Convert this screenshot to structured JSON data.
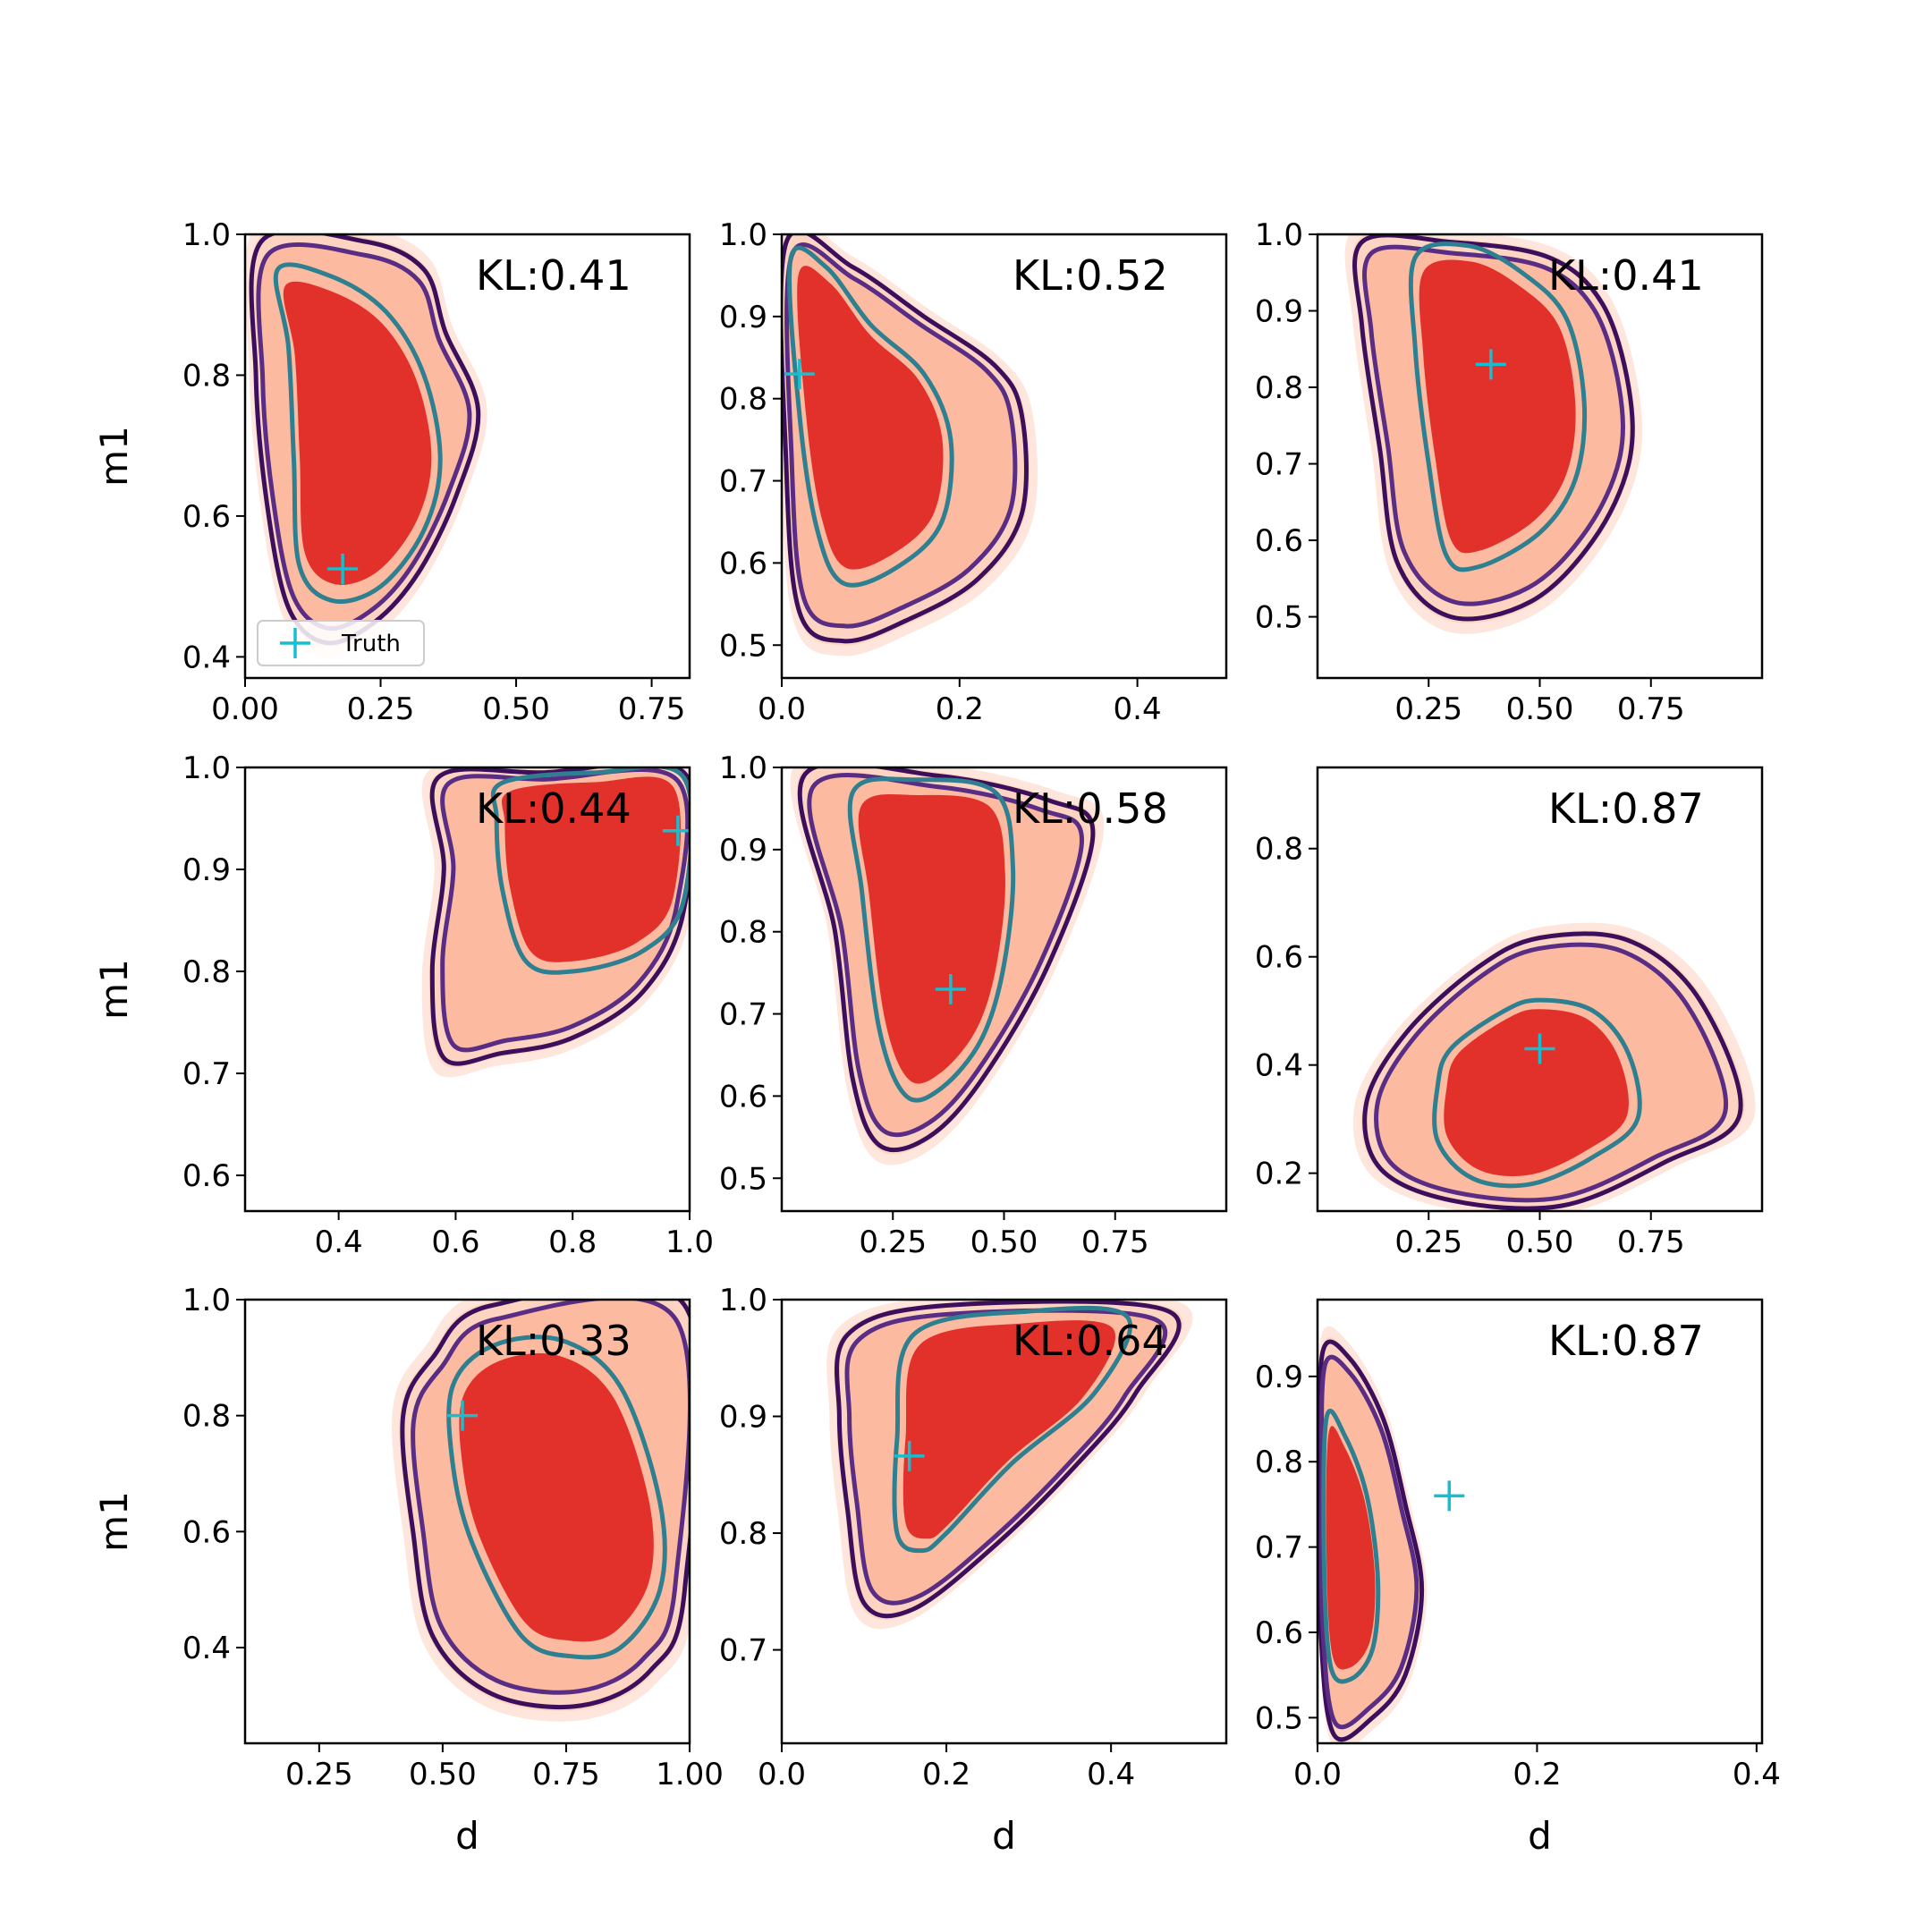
{
  "chart_data": [
    {
      "type": "contour",
      "kl_label": "KL:0.41",
      "xlabel": "",
      "ylabel": "m1",
      "xlim": [
        0.0,
        0.82
      ],
      "ylim": [
        0.37,
        1.0
      ],
      "xticks": [
        0.0,
        0.25,
        0.5,
        0.75
      ],
      "xtick_labels": [
        "0.00",
        "0.25",
        "0.50",
        "0.75"
      ],
      "yticks": [
        0.4,
        0.6,
        0.8,
        1.0
      ],
      "ytick_labels": [
        "0.4",
        "0.6",
        "0.8",
        "1.0"
      ],
      "truth": [
        0.18,
        0.525
      ],
      "legend": "Truth",
      "outer": [
        [
          0.03,
          0.99
        ],
        [
          0.22,
          0.99
        ],
        [
          0.33,
          0.95
        ],
        [
          0.37,
          0.86
        ],
        [
          0.43,
          0.75
        ],
        [
          0.39,
          0.63
        ],
        [
          0.32,
          0.52
        ],
        [
          0.24,
          0.45
        ],
        [
          0.15,
          0.42
        ],
        [
          0.08,
          0.47
        ],
        [
          0.04,
          0.62
        ],
        [
          0.02,
          0.8
        ]
      ],
      "inner": [
        [
          0.06,
          0.95
        ],
        [
          0.16,
          0.94
        ],
        [
          0.26,
          0.89
        ],
        [
          0.33,
          0.8
        ],
        [
          0.36,
          0.68
        ],
        [
          0.33,
          0.58
        ],
        [
          0.25,
          0.5
        ],
        [
          0.16,
          0.48
        ],
        [
          0.1,
          0.53
        ],
        [
          0.09,
          0.68
        ],
        [
          0.08,
          0.84
        ]
      ]
    },
    {
      "type": "contour",
      "kl_label": "KL:0.52",
      "xlabel": "",
      "ylabel": "",
      "xlim": [
        0.0,
        0.5
      ],
      "ylim": [
        0.46,
        1.0
      ],
      "xticks": [
        0.0,
        0.2,
        0.4
      ],
      "xtick_labels": [
        "0.0",
        "0.2",
        "0.4"
      ],
      "yticks": [
        0.5,
        0.6,
        0.7,
        0.8,
        0.9,
        1.0
      ],
      "ytick_labels": [
        "0.5",
        "0.6",
        "0.7",
        "0.8",
        "0.9",
        "1.0"
      ],
      "truth": [
        0.02,
        0.83
      ],
      "legend": "",
      "outer": [
        [
          0.005,
          0.99
        ],
        [
          0.08,
          0.96
        ],
        [
          0.16,
          0.9
        ],
        [
          0.24,
          0.84
        ],
        [
          0.27,
          0.78
        ],
        [
          0.27,
          0.66
        ],
        [
          0.22,
          0.58
        ],
        [
          0.14,
          0.53
        ],
        [
          0.07,
          0.505
        ],
        [
          0.02,
          0.54
        ],
        [
          0.005,
          0.72
        ]
      ],
      "inner": [
        [
          0.01,
          0.97
        ],
        [
          0.05,
          0.96
        ],
        [
          0.1,
          0.89
        ],
        [
          0.16,
          0.83
        ],
        [
          0.19,
          0.75
        ],
        [
          0.18,
          0.65
        ],
        [
          0.13,
          0.595
        ],
        [
          0.07,
          0.575
        ],
        [
          0.04,
          0.64
        ],
        [
          0.02,
          0.78
        ]
      ]
    },
    {
      "type": "contour",
      "kl_label": "KL:0.41",
      "xlabel": "",
      "ylabel": "",
      "xlim": [
        0.0,
        1.0
      ],
      "ylim": [
        0.42,
        1.0
      ],
      "xticks": [
        0.25,
        0.5,
        0.75
      ],
      "xtick_labels": [
        "0.25",
        "0.50",
        "0.75"
      ],
      "yticks": [
        0.5,
        0.6,
        0.7,
        0.8,
        0.9,
        1.0
      ],
      "ytick_labels": [
        "0.5",
        "0.6",
        "0.7",
        "0.8",
        "0.9",
        "1.0"
      ],
      "truth": [
        0.39,
        0.83
      ],
      "legend": "",
      "outer": [
        [
          0.1,
          0.99
        ],
        [
          0.3,
          0.99
        ],
        [
          0.52,
          0.97
        ],
        [
          0.64,
          0.91
        ],
        [
          0.7,
          0.8
        ],
        [
          0.7,
          0.7
        ],
        [
          0.62,
          0.6
        ],
        [
          0.48,
          0.52
        ],
        [
          0.3,
          0.5
        ],
        [
          0.18,
          0.57
        ],
        [
          0.14,
          0.72
        ],
        [
          0.1,
          0.88
        ]
      ],
      "inner": [
        [
          0.22,
          0.97
        ],
        [
          0.34,
          0.985
        ],
        [
          0.46,
          0.95
        ],
        [
          0.56,
          0.89
        ],
        [
          0.6,
          0.78
        ],
        [
          0.58,
          0.68
        ],
        [
          0.5,
          0.61
        ],
        [
          0.36,
          0.565
        ],
        [
          0.29,
          0.58
        ],
        [
          0.25,
          0.7
        ],
        [
          0.22,
          0.85
        ]
      ]
    },
    {
      "type": "contour",
      "kl_label": "KL:0.44",
      "xlabel": "",
      "ylabel": "m1",
      "xlim": [
        0.24,
        1.0
      ],
      "ylim": [
        0.565,
        1.0
      ],
      "xticks": [
        0.4,
        0.6,
        0.8,
        1.0
      ],
      "xtick_labels": [
        "0.4",
        "0.6",
        "0.8",
        "1.0"
      ],
      "yticks": [
        0.6,
        0.7,
        0.8,
        0.9,
        1.0
      ],
      "ytick_labels": [
        "0.6",
        "0.7",
        "0.8",
        "0.9",
        "1.0"
      ],
      "truth": [
        0.98,
        0.938
      ],
      "legend": "",
      "outer": [
        [
          0.57,
          0.99
        ],
        [
          0.75,
          0.995
        ],
        [
          0.99,
          0.995
        ],
        [
          0.99,
          0.86
        ],
        [
          0.92,
          0.78
        ],
        [
          0.8,
          0.735
        ],
        [
          0.68,
          0.72
        ],
        [
          0.58,
          0.715
        ],
        [
          0.56,
          0.8
        ],
        [
          0.58,
          0.9
        ]
      ],
      "inner": [
        [
          0.68,
          0.985
        ],
        [
          0.84,
          0.995
        ],
        [
          0.99,
          0.99
        ],
        [
          0.99,
          0.87
        ],
        [
          0.92,
          0.82
        ],
        [
          0.8,
          0.8
        ],
        [
          0.72,
          0.81
        ],
        [
          0.68,
          0.88
        ],
        [
          0.67,
          0.95
        ]
      ]
    },
    {
      "type": "contour",
      "kl_label": "KL:0.58",
      "xlabel": "",
      "ylabel": "",
      "xlim": [
        0.0,
        1.0
      ],
      "ylim": [
        0.46,
        1.0
      ],
      "xticks": [
        0.25,
        0.5,
        0.75
      ],
      "xtick_labels": [
        "0.25",
        "0.50",
        "0.75"
      ],
      "yticks": [
        0.5,
        0.6,
        0.7,
        0.8,
        0.9,
        1.0
      ],
      "ytick_labels": [
        "0.5",
        "0.6",
        "0.7",
        "0.8",
        "0.9",
        "1.0"
      ],
      "truth": [
        0.38,
        0.73
      ],
      "legend": "",
      "outer": [
        [
          0.05,
          0.99
        ],
        [
          0.35,
          0.99
        ],
        [
          0.6,
          0.96
        ],
        [
          0.7,
          0.92
        ],
        [
          0.6,
          0.76
        ],
        [
          0.45,
          0.62
        ],
        [
          0.33,
          0.55
        ],
        [
          0.22,
          0.54
        ],
        [
          0.16,
          0.62
        ],
        [
          0.12,
          0.8
        ]
      ],
      "inner": [
        [
          0.16,
          0.97
        ],
        [
          0.3,
          0.985
        ],
        [
          0.48,
          0.97
        ],
        [
          0.52,
          0.88
        ],
        [
          0.5,
          0.76
        ],
        [
          0.45,
          0.67
        ],
        [
          0.36,
          0.61
        ],
        [
          0.28,
          0.6
        ],
        [
          0.22,
          0.68
        ],
        [
          0.18,
          0.85
        ]
      ]
    },
    {
      "type": "contour",
      "kl_label": "KL:0.87",
      "xlabel": "",
      "ylabel": "",
      "xlim": [
        0.0,
        1.0
      ],
      "ylim": [
        0.13,
        0.95
      ],
      "xticks": [
        0.25,
        0.5,
        0.75
      ],
      "xtick_labels": [
        "0.25",
        "0.50",
        "0.75"
      ],
      "yticks": [
        0.2,
        0.4,
        0.6,
        0.8
      ],
      "ytick_labels": [
        "0.2",
        "0.4",
        "0.6",
        "0.8"
      ],
      "truth": [
        0.5,
        0.43
      ],
      "legend": "",
      "outer": [
        [
          0.2,
          0.46
        ],
        [
          0.36,
          0.58
        ],
        [
          0.5,
          0.635
        ],
        [
          0.7,
          0.63
        ],
        [
          0.86,
          0.52
        ],
        [
          0.95,
          0.31
        ],
        [
          0.78,
          0.22
        ],
        [
          0.55,
          0.14
        ],
        [
          0.3,
          0.15
        ],
        [
          0.14,
          0.21
        ],
        [
          0.11,
          0.33
        ]
      ],
      "inner": [
        [
          0.3,
          0.43
        ],
        [
          0.42,
          0.5
        ],
        [
          0.5,
          0.52
        ],
        [
          0.62,
          0.5
        ],
        [
          0.7,
          0.42
        ],
        [
          0.72,
          0.3
        ],
        [
          0.62,
          0.23
        ],
        [
          0.48,
          0.18
        ],
        [
          0.35,
          0.19
        ],
        [
          0.27,
          0.26
        ],
        [
          0.27,
          0.36
        ]
      ]
    },
    {
      "type": "contour",
      "kl_label": "KL:0.33",
      "xlabel": "d",
      "ylabel": "m1",
      "xlim": [
        0.1,
        1.0
      ],
      "ylim": [
        0.235,
        1.0
      ],
      "xticks": [
        0.25,
        0.5,
        0.75,
        1.0
      ],
      "xtick_labels": [
        "0.25",
        "0.50",
        "0.75",
        "1.00"
      ],
      "yticks": [
        0.4,
        0.6,
        0.8,
        1.0
      ],
      "ytick_labels": [
        "0.4",
        "0.6",
        "0.8",
        "1.0"
      ],
      "truth": [
        0.54,
        0.8
      ],
      "legend": "",
      "outer": [
        [
          0.48,
          0.9
        ],
        [
          0.6,
          0.99
        ],
        [
          0.99,
          0.99
        ],
        [
          0.99,
          0.5
        ],
        [
          0.92,
          0.36
        ],
        [
          0.78,
          0.3
        ],
        [
          0.6,
          0.32
        ],
        [
          0.48,
          0.42
        ],
        [
          0.44,
          0.6
        ],
        [
          0.42,
          0.8
        ]
      ],
      "inner": [
        [
          0.52,
          0.85
        ],
        [
          0.6,
          0.92
        ],
        [
          0.74,
          0.93
        ],
        [
          0.86,
          0.85
        ],
        [
          0.94,
          0.65
        ],
        [
          0.94,
          0.5
        ],
        [
          0.86,
          0.4
        ],
        [
          0.76,
          0.385
        ],
        [
          0.66,
          0.42
        ],
        [
          0.56,
          0.58
        ],
        [
          0.52,
          0.72
        ]
      ]
    },
    {
      "type": "contour",
      "kl_label": "KL:0.64",
      "xlabel": "d",
      "ylabel": "",
      "xlim": [
        0.0,
        0.54
      ],
      "ylim": [
        0.62,
        1.0
      ],
      "xticks": [
        0.0,
        0.2,
        0.4
      ],
      "xtick_labels": [
        "0.0",
        "0.2",
        "0.4"
      ],
      "yticks": [
        0.7,
        0.8,
        0.9,
        1.0
      ],
      "ytick_labels": [
        "0.7",
        "0.8",
        "0.9",
        "1.0"
      ],
      "truth": [
        0.155,
        0.866
      ],
      "legend": "",
      "outer": [
        [
          0.08,
          0.97
        ],
        [
          0.2,
          0.995
        ],
        [
          0.47,
          0.99
        ],
        [
          0.43,
          0.92
        ],
        [
          0.36,
          0.86
        ],
        [
          0.26,
          0.79
        ],
        [
          0.16,
          0.735
        ],
        [
          0.1,
          0.74
        ],
        [
          0.08,
          0.82
        ],
        [
          0.07,
          0.9
        ]
      ],
      "inner": [
        [
          0.16,
          0.97
        ],
        [
          0.3,
          0.99
        ],
        [
          0.42,
          0.985
        ],
        [
          0.38,
          0.92
        ],
        [
          0.28,
          0.86
        ],
        [
          0.2,
          0.8
        ],
        [
          0.17,
          0.785
        ],
        [
          0.14,
          0.8
        ],
        [
          0.14,
          0.88
        ]
      ]
    },
    {
      "type": "contour",
      "kl_label": "KL:0.87",
      "xlabel": "d",
      "ylabel": "",
      "xlim": [
        0.0,
        0.405
      ],
      "ylim": [
        0.47,
        0.99
      ],
      "xticks": [
        0.0,
        0.2,
        0.4
      ],
      "xtick_labels": [
        "0.0",
        "0.2",
        "0.4"
      ],
      "yticks": [
        0.5,
        0.6,
        0.7,
        0.8,
        0.9
      ],
      "ytick_labels": [
        "0.5",
        "0.6",
        "0.7",
        "0.8",
        "0.9"
      ],
      "truth": [
        0.12,
        0.76
      ],
      "legend": "",
      "outer": [
        [
          0.005,
          0.93
        ],
        [
          0.03,
          0.92
        ],
        [
          0.06,
          0.85
        ],
        [
          0.08,
          0.75
        ],
        [
          0.095,
          0.65
        ],
        [
          0.08,
          0.55
        ],
        [
          0.05,
          0.5
        ],
        [
          0.015,
          0.48
        ],
        [
          0.003,
          0.6
        ],
        [
          0.002,
          0.78
        ]
      ],
      "inner": [
        [
          0.008,
          0.85
        ],
        [
          0.025,
          0.83
        ],
        [
          0.045,
          0.76
        ],
        [
          0.055,
          0.66
        ],
        [
          0.05,
          0.58
        ],
        [
          0.03,
          0.545
        ],
        [
          0.012,
          0.56
        ],
        [
          0.006,
          0.68
        ]
      ]
    }
  ]
}
